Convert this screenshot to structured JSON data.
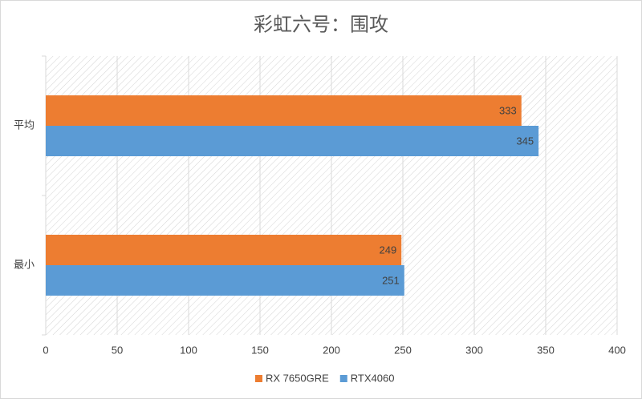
{
  "chart_data": {
    "type": "bar",
    "orientation": "horizontal",
    "title": "彩虹六号：围攻",
    "categories": [
      "平均",
      "最小"
    ],
    "series": [
      {
        "name": "RX 7650GRE",
        "color": "#ed7d31",
        "values": [
          333,
          249
        ]
      },
      {
        "name": "RTX4060",
        "color": "#5b9bd5",
        "values": [
          345,
          251
        ]
      }
    ],
    "xlim": [
      0,
      400
    ],
    "xticks": [
      0,
      50,
      100,
      150,
      200,
      250,
      300,
      350,
      400
    ],
    "grid": true,
    "legend": "bottom"
  }
}
